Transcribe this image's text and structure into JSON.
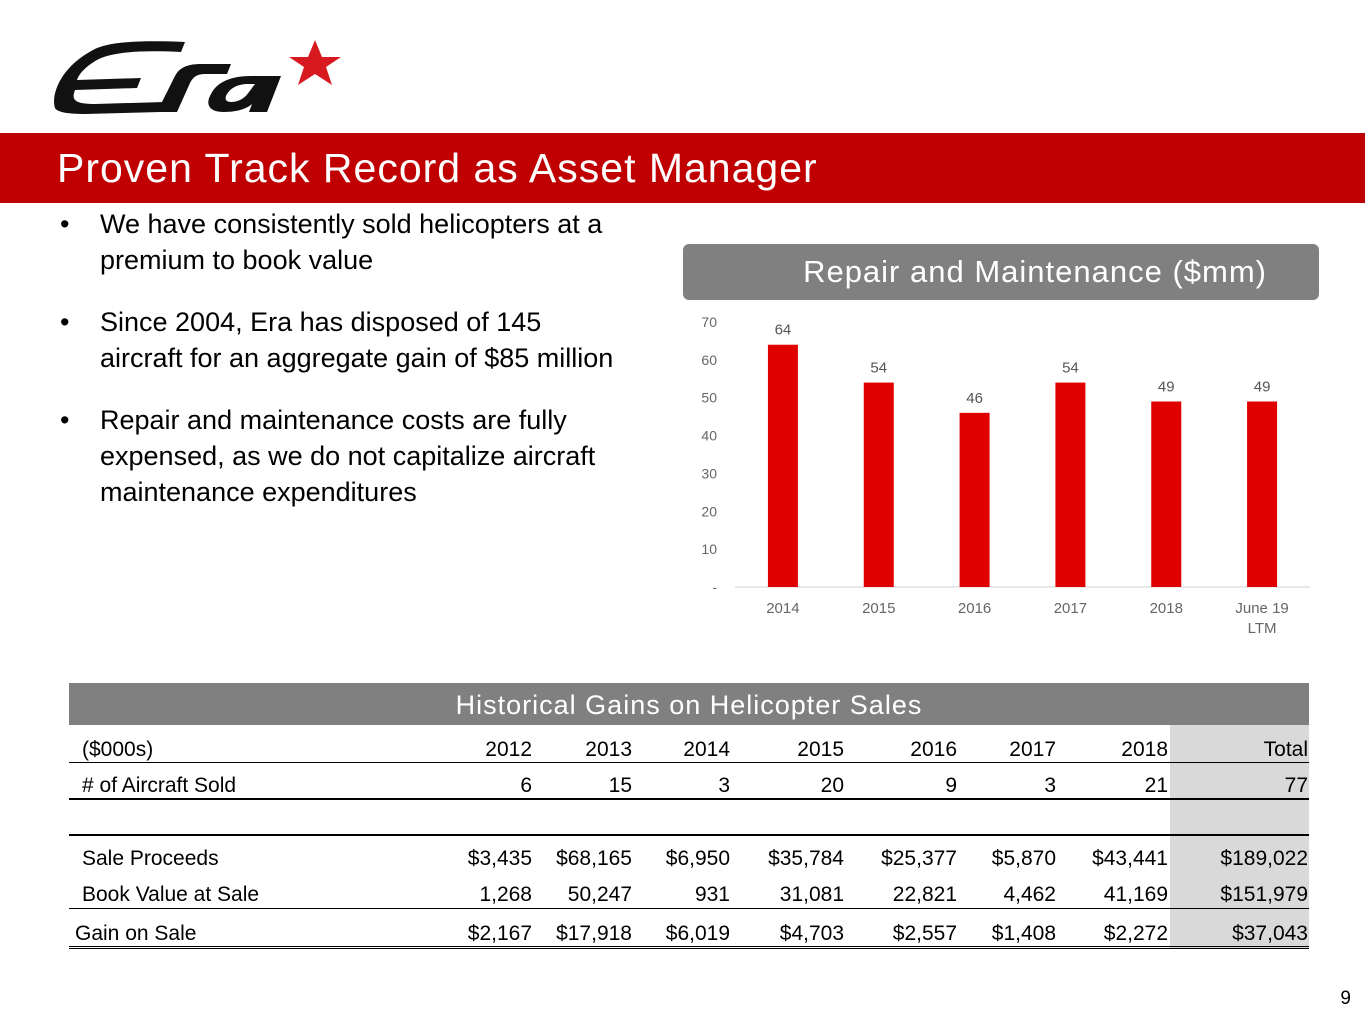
{
  "logo": {
    "text": "Era",
    "accent_color": "#d71920"
  },
  "title": "Proven Track Record as Asset Manager",
  "bullets": [
    "We have consistently sold helicopters at a premium to book value",
    "Since 2004, Era has disposed of 145 aircraft for an aggregate gain of $85 million",
    "Repair and maintenance costs are fully expensed, as we do not capitalize aircraft maintenance expenditures"
  ],
  "chart_header": "Repair and Maintenance ($mm)",
  "chart_data": {
    "type": "bar",
    "title": "Repair and Maintenance ($mm)",
    "categories": [
      "2014",
      "2015",
      "2016",
      "2017",
      "2018",
      "June 19 LTM"
    ],
    "values": [
      64,
      54,
      46,
      54,
      49,
      49
    ],
    "ylim": [
      0,
      70
    ],
    "yticks": [
      "-",
      "10",
      "20",
      "30",
      "40",
      "50",
      "60",
      "70"
    ],
    "bar_color": "#e00000",
    "grid": false
  },
  "table": {
    "title": "Historical Gains on Helicopter Sales",
    "header": [
      "($000s)",
      "2012",
      "2013",
      "2014",
      "2015",
      "2016",
      "2017",
      "2018",
      "Total"
    ],
    "rows": [
      [
        "# of Aircraft Sold",
        "6",
        "15",
        "3",
        "20",
        "9",
        "3",
        "21",
        "77"
      ],
      [
        "Sale Proceeds",
        "$3,435",
        "$68,165",
        "$6,950",
        "$35,784",
        "$25,377",
        "$5,870",
        "$43,441",
        "$189,022"
      ],
      [
        "Book Value at Sale",
        "1,268",
        "50,247",
        "931",
        "31,081",
        "22,821",
        "4,462",
        "41,169",
        "$151,979"
      ],
      [
        "Gain on Sale",
        "$2,167",
        "$17,918",
        "$6,019",
        "$4,703",
        "$2,557",
        "$1,408",
        "$2,272",
        "$37,043"
      ]
    ]
  },
  "page_number": "9"
}
